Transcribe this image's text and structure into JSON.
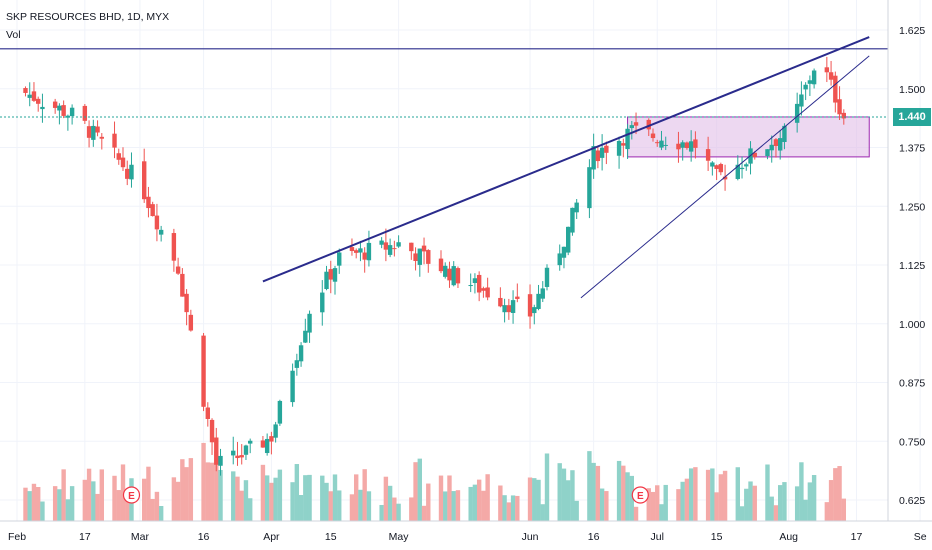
{
  "header": {
    "title": "SKP RESOURCES BHD, 1D, MYX",
    "volume_label": "Vol"
  },
  "price_tag": "1.440",
  "colors": {
    "up": "#26a69a",
    "down": "#ef5350",
    "vol_up": "#8fd2c9",
    "vol_down": "#f4a9a7",
    "trendline": "#2a2b8c",
    "resistance": "#2a2b8c",
    "box_fill": "#e1bee7",
    "box_stroke": "#9c27b0",
    "dotted_price": "#26a69a"
  },
  "chart_data": {
    "type": "candlestick",
    "title": "SKP RESOURCES BHD, 1D, MYX",
    "y_axis_ticks": [
      "1.625",
      "1.500",
      "1.375",
      "1.250",
      "1.125",
      "1.000",
      "0.875",
      "0.750",
      "0.625"
    ],
    "x_axis_ticks": [
      {
        "label": "Feb",
        "date": "2020-02-01"
      },
      {
        "label": "17",
        "date": "2020-02-17"
      },
      {
        "label": "Mar",
        "date": "2020-03-01"
      },
      {
        "label": "16",
        "date": "2020-03-16"
      },
      {
        "label": "Apr",
        "date": "2020-04-01"
      },
      {
        "label": "15",
        "date": "2020-04-15"
      },
      {
        "label": "May",
        "date": "2020-05-01"
      },
      {
        "label": "Jun",
        "date": "2020-06-01"
      },
      {
        "label": "16",
        "date": "2020-06-16"
      },
      {
        "label": "Jul",
        "date": "2020-07-01"
      },
      {
        "label": "15",
        "date": "2020-07-15"
      },
      {
        "label": "Aug",
        "date": "2020-08-01"
      },
      {
        "label": "17",
        "date": "2020-08-17"
      },
      {
        "label": "Se",
        "date": "2020-09-01"
      }
    ],
    "ylim": [
      0.595,
      1.675
    ],
    "last_price": 1.44,
    "candles_summary": [
      {
        "date": "2020-02-01",
        "close": 1.5
      },
      {
        "date": "2020-02-15",
        "close": 1.44
      },
      {
        "date": "2020-03-01",
        "close": 1.3
      },
      {
        "date": "2020-03-10",
        "close": 1.12
      },
      {
        "date": "2020-03-19",
        "close": 0.7
      },
      {
        "date": "2020-03-25",
        "close": 0.72
      },
      {
        "date": "2020-04-01",
        "close": 0.76
      },
      {
        "date": "2020-04-10",
        "close": 1.03
      },
      {
        "date": "2020-04-17",
        "close": 1.14
      },
      {
        "date": "2020-05-01",
        "close": 1.17
      },
      {
        "date": "2020-05-15",
        "close": 1.1
      },
      {
        "date": "2020-06-01",
        "close": 1.02
      },
      {
        "date": "2020-06-10",
        "close": 1.2
      },
      {
        "date": "2020-06-16",
        "close": 1.36
      },
      {
        "date": "2020-06-25",
        "close": 1.41
      },
      {
        "date": "2020-07-10",
        "close": 1.38
      },
      {
        "date": "2020-07-15",
        "close": 1.31
      },
      {
        "date": "2020-08-01",
        "close": 1.41
      },
      {
        "date": "2020-08-08",
        "close": 1.57
      },
      {
        "date": "2020-08-14",
        "close": 1.44
      }
    ],
    "drawings": {
      "resistance_level": 1.585,
      "current_price_line": 1.44,
      "consolidation_box": {
        "start": "2020-06-24",
        "end": "2020-08-20",
        "top": 1.44,
        "bottom": 1.355
      },
      "upper_trendline": [
        {
          "date": "2020-03-30",
          "price": 1.09
        },
        {
          "date": "2020-08-20",
          "price": 1.61
        }
      ],
      "lower_trendline": [
        {
          "date": "2020-06-13",
          "price": 1.055
        },
        {
          "date": "2020-08-20",
          "price": 1.57
        }
      ]
    },
    "earnings_markers": [
      {
        "label": "E",
        "date": "2020-02-28"
      },
      {
        "label": "E",
        "date": "2020-06-27"
      }
    ]
  }
}
